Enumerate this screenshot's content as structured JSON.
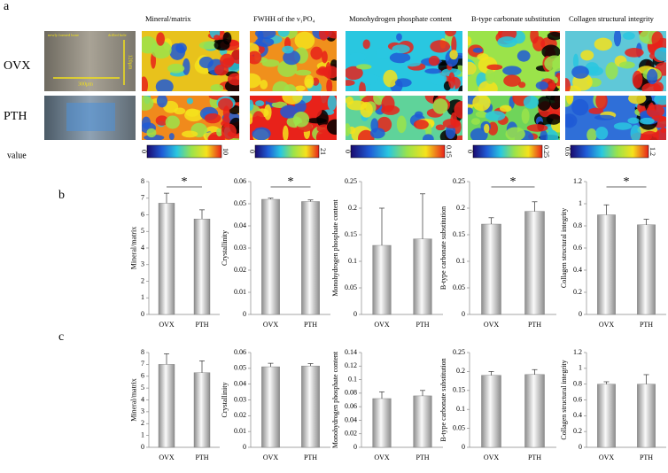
{
  "panel_a": {
    "label": "a",
    "rows": [
      "OVX",
      "PTH"
    ],
    "columns": [
      "Mineral/matrix",
      "FWHH of the ν₁PO₄",
      "Monohydrogen phosphate content",
      "B-type carbonate substitution",
      "Collagen structural integrity"
    ],
    "colorbar_title": "value",
    "colorbar_ticks": [
      [
        "0",
        "10"
      ],
      [
        "0",
        "21"
      ],
      [
        "0",
        "0.15"
      ],
      [
        "0",
        "0.25"
      ],
      [
        "0.6",
        "1.2"
      ]
    ],
    "micrograph_labels": [
      "newly formed bone",
      "drilled hole",
      "300μm",
      "120μm"
    ]
  },
  "panel_b_label": "b",
  "panel_c_label": "c",
  "chart_data": [
    {
      "type": "bar",
      "ylabel": "Mineral/matrix",
      "categories": [
        "OVX",
        "PTH"
      ],
      "values": [
        6.7,
        5.75
      ],
      "errors": [
        0.6,
        0.55
      ],
      "color": "#8c8c8c",
      "ylim": [
        0,
        8
      ],
      "yticks": [
        0,
        1,
        2,
        3,
        4,
        5,
        6,
        7,
        8
      ],
      "significance": "*"
    },
    {
      "type": "bar",
      "ylabel": "Crystallinity",
      "categories": [
        "OVX",
        "PTH"
      ],
      "values": [
        0.052,
        0.051
      ],
      "errors": [
        0.0005,
        0.0007
      ],
      "color": "#8c8c8c",
      "ylim": [
        0,
        0.06
      ],
      "yticks": [
        0,
        0.01,
        0.02,
        0.03,
        0.04,
        0.05,
        0.06
      ],
      "significance": "*"
    },
    {
      "type": "bar",
      "ylabel": "Monohydrogen phosphate content",
      "categories": [
        "OVX",
        "PTH"
      ],
      "values": [
        0.13,
        0.142
      ],
      "errors": [
        0.07,
        0.085
      ],
      "color": "#8c8c8c",
      "ylim": [
        0,
        0.25
      ],
      "yticks": [
        0,
        0.05,
        0.1,
        0.15,
        0.2,
        0.25
      ]
    },
    {
      "type": "bar",
      "ylabel": "B-type carbonate substitution",
      "categories": [
        "OVX",
        "PTH"
      ],
      "values": [
        0.17,
        0.194
      ],
      "errors": [
        0.012,
        0.018
      ],
      "color": "#8c8c8c",
      "ylim": [
        0,
        0.25
      ],
      "yticks": [
        0,
        0.05,
        0.1,
        0.15,
        0.2,
        0.25
      ],
      "significance": "*"
    },
    {
      "type": "bar",
      "ylabel": "Collagen structural integrity",
      "categories": [
        "OVX",
        "PTH"
      ],
      "values": [
        0.9,
        0.81
      ],
      "errors": [
        0.09,
        0.05
      ],
      "color": "#8c8c8c",
      "ylim": [
        0,
        1.2
      ],
      "yticks": [
        0,
        0.2,
        0.4,
        0.6,
        0.8,
        1,
        1.2
      ],
      "significance": "*"
    },
    {
      "type": "bar",
      "ylabel": "Mineral/matrix",
      "categories": [
        "OVX",
        "PTH"
      ],
      "values": [
        7.0,
        6.3
      ],
      "errors": [
        0.9,
        1.0
      ],
      "color": "#8c8c8c",
      "ylim": [
        0,
        8
      ],
      "yticks": [
        0,
        1,
        2,
        3,
        4,
        5,
        6,
        7,
        8
      ]
    },
    {
      "type": "bar",
      "ylabel": "Crystallinity",
      "categories": [
        "OVX",
        "PTH"
      ],
      "values": [
        0.051,
        0.0515
      ],
      "errors": [
        0.0022,
        0.0015
      ],
      "color": "#8c8c8c",
      "ylim": [
        0,
        0.06
      ],
      "yticks": [
        0,
        0.01,
        0.02,
        0.03,
        0.04,
        0.05,
        0.06
      ]
    },
    {
      "type": "bar",
      "ylabel": "Monohydrogen phosphate content",
      "categories": [
        "OVX",
        "PTH"
      ],
      "values": [
        0.072,
        0.076
      ],
      "errors": [
        0.01,
        0.008
      ],
      "color": "#8c8c8c",
      "ylim": [
        0,
        0.14
      ],
      "yticks": [
        0,
        0.02,
        0.04,
        0.06,
        0.08,
        0.1,
        0.12,
        0.14
      ]
    },
    {
      "type": "bar",
      "ylabel": "B-type carbonate substitution",
      "categories": [
        "OVX",
        "PTH"
      ],
      "values": [
        0.19,
        0.192
      ],
      "errors": [
        0.01,
        0.013
      ],
      "color": "#8c8c8c",
      "ylim": [
        0,
        0.25
      ],
      "yticks": [
        0,
        0.05,
        0.1,
        0.15,
        0.2,
        0.25
      ]
    },
    {
      "type": "bar",
      "ylabel": "Collagen structural integrity",
      "categories": [
        "OVX",
        "PTH"
      ],
      "values": [
        0.8,
        0.8
      ],
      "errors": [
        0.03,
        0.12
      ],
      "color": "#8c8c8c",
      "ylim": [
        0,
        1.2
      ],
      "yticks": [
        0,
        0.2,
        0.4,
        0.6,
        0.8,
        1,
        1.2
      ]
    }
  ]
}
